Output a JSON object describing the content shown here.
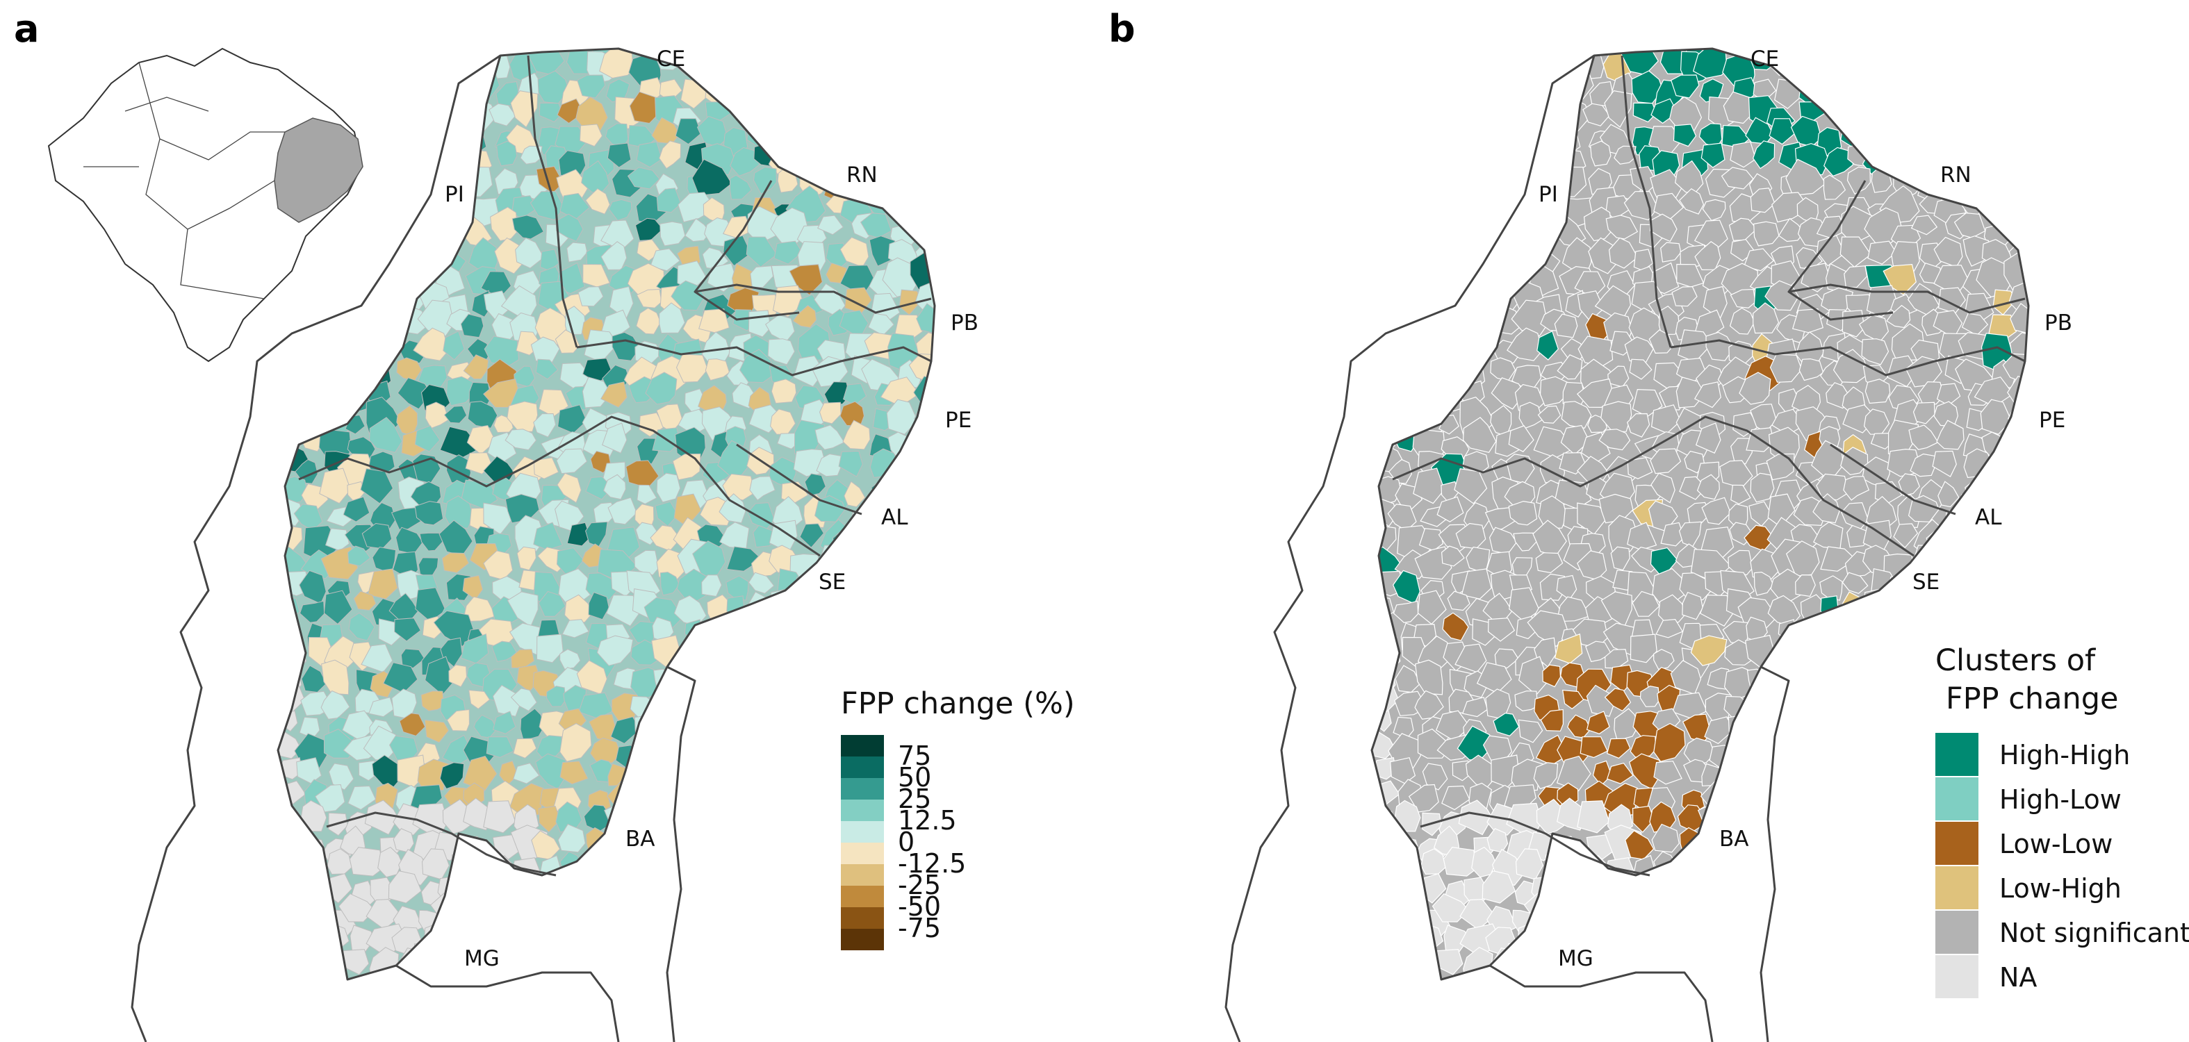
{
  "panels": [
    {
      "letter": "a",
      "legend_title": "FPP change (%)",
      "legend_items": [
        {
          "label": "75",
          "color": "#013d33"
        },
        {
          "label": "50",
          "color": "#0a6c62"
        },
        {
          "label": "25",
          "color": "#359b90"
        },
        {
          "label": "12.5",
          "color": "#83cfc3"
        },
        {
          "label": "0",
          "color": "#c9ebe5"
        },
        {
          "label": "-12.5",
          "color": "#f5e4c0"
        },
        {
          "label": "-25",
          "color": "#dfc07e"
        },
        {
          "label": "-50",
          "color": "#c08a3c"
        },
        {
          "label": "-75",
          "color": "#8a5414"
        },
        {
          "label": "",
          "color": "#5c3407"
        }
      ]
    },
    {
      "letter": "b",
      "legend_title_line1": "Clusters of",
      "legend_title_line2": "FPP change",
      "legend_items": [
        {
          "label": "High-High",
          "color": "#008a72"
        },
        {
          "label": "High-Low",
          "color": "#7fcfc2"
        },
        {
          "label": "Low-Low",
          "color": "#a8621c"
        },
        {
          "label": "Low-High",
          "color": "#dfc27c"
        },
        {
          "label": "Not significant",
          "color": "#b3b3b3"
        },
        {
          "label": "NA",
          "color": "#e3e3e3"
        }
      ]
    }
  ],
  "state_labels": [
    "CE",
    "RN",
    "PI",
    "PB",
    "PE",
    "AL",
    "SE",
    "BA",
    "MG"
  ],
  "colors": {
    "na_fill": "#e3e3e3",
    "boundary": "#444444",
    "inset_highlight": "#a6a6a6"
  }
}
